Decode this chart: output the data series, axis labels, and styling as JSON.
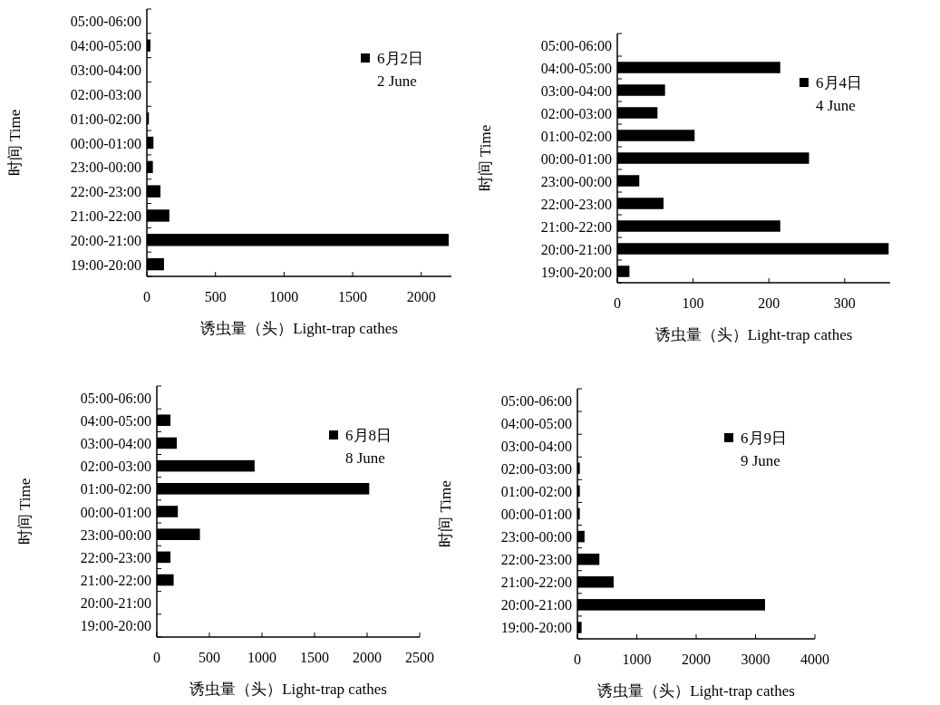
{
  "chart_data": [
    {
      "type": "bar",
      "orientation": "horizontal",
      "xlabel": "诱虫量（头）Light-trap cathes",
      "ylabel": "时间 Time",
      "legend": "top right",
      "categories": [
        "05:00-06:00",
        "04:00-05:00",
        "03:00-04:00",
        "02:00-03:00",
        "01:00-02:00",
        "00:00-01:00",
        "23:00-00:00",
        "22:00-23:00",
        "21:00-22:00",
        "20:00-21:00",
        "19:00-20:00"
      ],
      "series": [
        {
          "name": "6月2日\n2 June",
          "color": "#000000",
          "values": [
            0,
            26,
            0,
            0,
            15,
            48,
            44,
            99,
            164,
            2200,
            125
          ]
        }
      ],
      "xlim": [
        0,
        2220
      ],
      "xticks": [
        0,
        500,
        1000,
        1500,
        2000
      ]
    },
    {
      "type": "bar",
      "orientation": "horizontal",
      "xlabel": "诱虫量（头）Light-trap cathes",
      "ylabel": "时间 Time",
      "legend": "top right",
      "categories": [
        "05:00-06:00",
        "04:00-05:00",
        "03:00-04:00",
        "02:00-03:00",
        "01:00-02:00",
        "00:00-01:00",
        "23:00-00:00",
        "22:00-23:00",
        "21:00-22:00",
        "20:00-21:00",
        "19:00-20:00"
      ],
      "series": [
        {
          "name": "6月4日\n4 June",
          "color": "#000000",
          "values": [
            0,
            215,
            63,
            53,
            102,
            253,
            29,
            61,
            215,
            358,
            16
          ]
        }
      ],
      "xlim": [
        0,
        360
      ],
      "xticks": [
        0,
        100,
        200,
        300
      ]
    },
    {
      "type": "bar",
      "orientation": "horizontal",
      "xlabel": "诱虫量（头）Light-trap cathes",
      "ylabel": "时间 Time",
      "legend": "top right",
      "categories": [
        "05:00-06:00",
        "04:00-05:00",
        "03:00-04:00",
        "02:00-03:00",
        "01:00-02:00",
        "00:00-01:00",
        "23:00-00:00",
        "22:00-23:00",
        "21:00-22:00",
        "20:00-21:00",
        "19:00-20:00"
      ],
      "series": [
        {
          "name": "6月8日\n8 June",
          "color": "#000000",
          "values": [
            0,
            130,
            190,
            930,
            2020,
            200,
            410,
            130,
            160,
            0,
            0
          ]
        }
      ],
      "xlim": [
        0,
        2500
      ],
      "xticks": [
        0,
        500,
        1000,
        1500,
        2000,
        2500
      ]
    },
    {
      "type": "bar",
      "orientation": "horizontal",
      "xlabel": "诱虫量（头）Light-trap cathes",
      "ylabel": "时间 Time",
      "legend": "top right",
      "categories": [
        "05:00-06:00",
        "04:00-05:00",
        "03:00-04:00",
        "02:00-03:00",
        "01:00-02:00",
        "00:00-01:00",
        "23:00-00:00",
        "22:00-23:00",
        "21:00-22:00",
        "20:00-21:00",
        "19:00-20:00"
      ],
      "series": [
        {
          "name": "6月9日\n9 June",
          "color": "#000000",
          "values": [
            0,
            0,
            0,
            40,
            40,
            40,
            120,
            370,
            610,
            3160,
            70
          ]
        }
      ],
      "xlim": [
        0,
        4000
      ],
      "xticks": [
        0,
        1000,
        2000,
        3000,
        4000
      ]
    }
  ]
}
